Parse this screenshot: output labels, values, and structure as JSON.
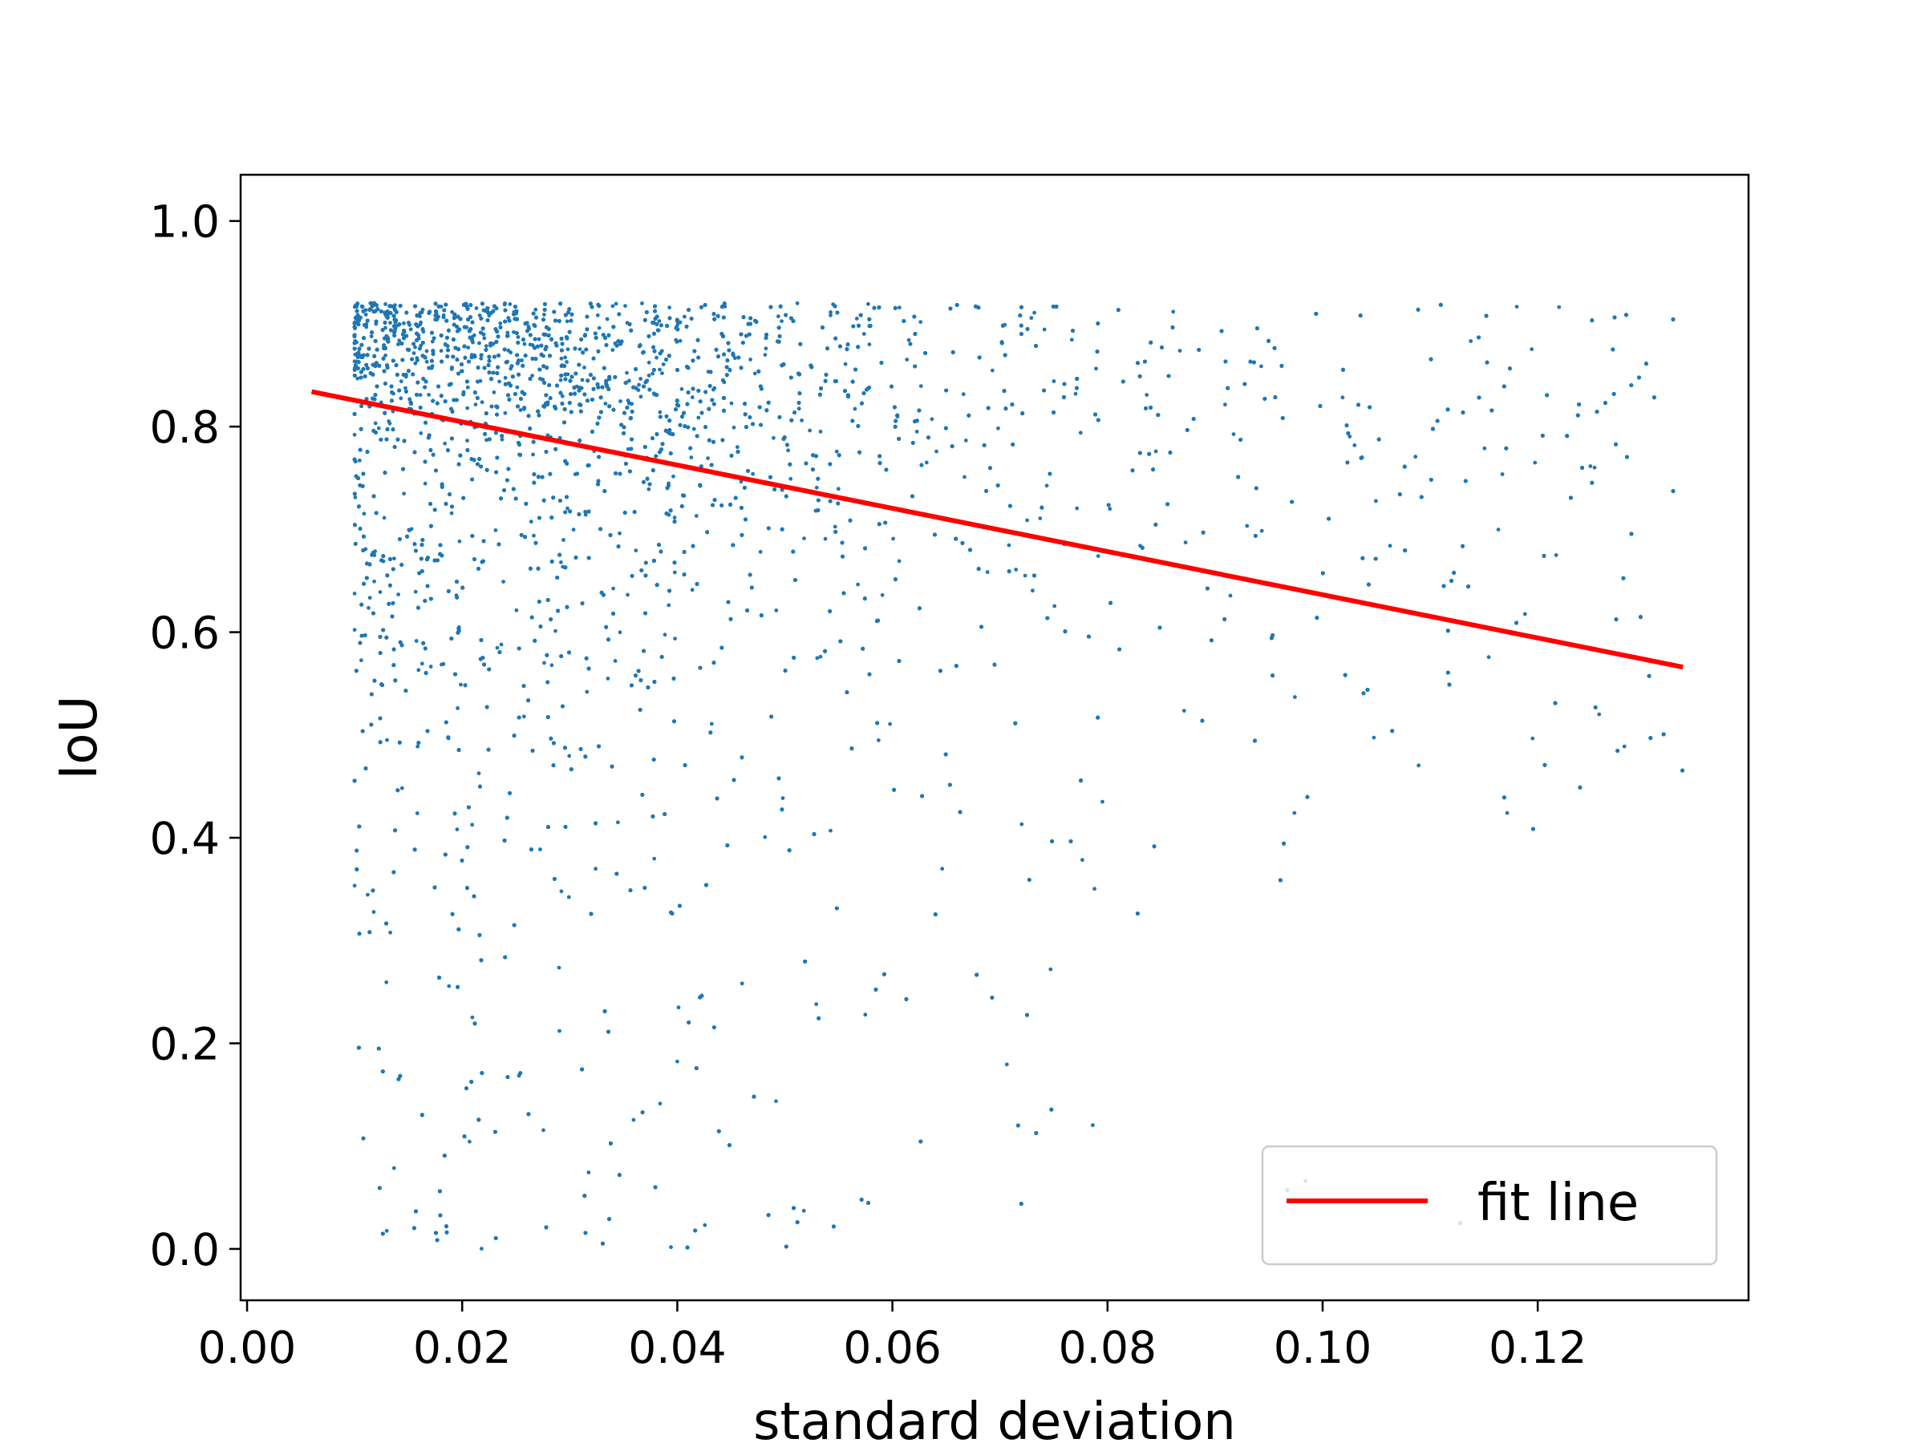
{
  "chart_data": {
    "type": "scatter",
    "title": "",
    "xlabel": "standard deviation",
    "ylabel": "IoU",
    "xlim": [
      -0.0006,
      0.1396
    ],
    "ylim": [
      -0.05,
      1.045
    ],
    "xticks": [
      0.0,
      0.02,
      0.04,
      0.06,
      0.08,
      0.1,
      0.12
    ],
    "xtick_labels": [
      "0.00",
      "0.02",
      "0.04",
      "0.06",
      "0.08",
      "0.10",
      "0.12"
    ],
    "yticks": [
      0.0,
      0.2,
      0.4,
      0.6,
      0.8,
      1.0
    ],
    "ytick_labels": [
      "0.0",
      "0.2",
      "0.4",
      "0.6",
      "0.8",
      "1.0"
    ],
    "grid": false,
    "legend_position": "bottom-right",
    "scatter_color": "#1f77b4",
    "scatter_points_approx": 14000,
    "fit_line": {
      "label": "fit line",
      "color": "#ff0000",
      "x": [
        0.006,
        0.1335
      ],
      "y": [
        0.834,
        0.566
      ]
    }
  }
}
